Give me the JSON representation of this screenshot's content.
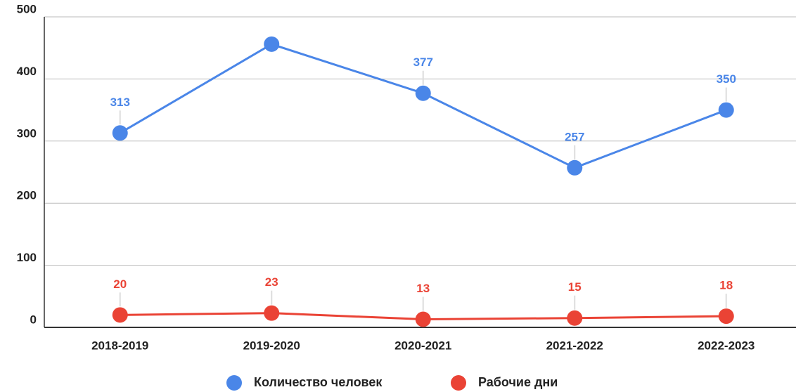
{
  "chart_data": {
    "type": "line",
    "categories": [
      "2018-2019",
      "2019-2020",
      "2020-2021",
      "2021-2022",
      "2022-2023"
    ],
    "series": [
      {
        "name": "Количество человек",
        "color": "#4a86e8",
        "values": [
          313,
          456,
          377,
          257,
          350
        ],
        "value_labels": [
          "313",
          null,
          "377",
          "257",
          "350"
        ]
      },
      {
        "name": "Рабочие дни",
        "color": "#ea4335",
        "values": [
          20,
          23,
          13,
          15,
          18
        ]
      }
    ],
    "ylim": [
      0,
      500
    ],
    "yticks": [
      0,
      100,
      200,
      300,
      400,
      500
    ],
    "grid": true,
    "legend": "bottom"
  }
}
